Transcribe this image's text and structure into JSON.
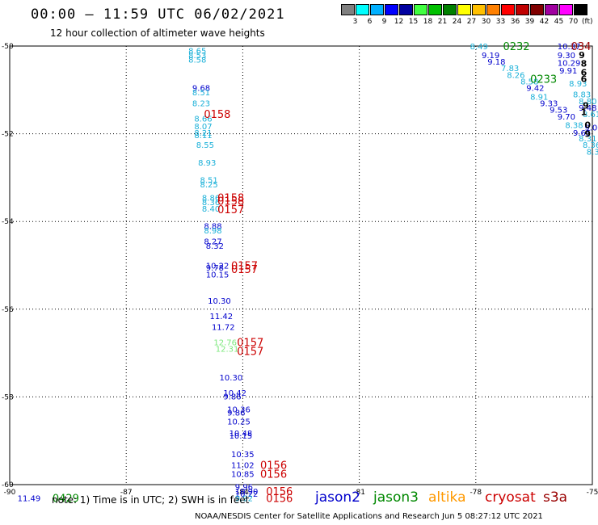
{
  "header": {
    "title": "00:00 – 11:59 UTC 06/02/2021",
    "subtitle": "12 hour collection of altimeter wave heights"
  },
  "legend": {
    "unit": "(ft)",
    "items": [
      {
        "label": "",
        "color": "#808080"
      },
      {
        "label": "3",
        "color": "#00ffff"
      },
      {
        "label": "6",
        "color": "#00b0ff"
      },
      {
        "label": "9",
        "color": "#0000ff"
      },
      {
        "label": "12",
        "color": "#0000a0"
      },
      {
        "label": "15",
        "color": "#40ff40"
      },
      {
        "label": "18",
        "color": "#00c000"
      },
      {
        "label": "21",
        "color": "#008000"
      },
      {
        "label": "24",
        "color": "#ffff00"
      },
      {
        "label": "27",
        "color": "#ffc000"
      },
      {
        "label": "30",
        "color": "#ff8000"
      },
      {
        "label": "33",
        "color": "#ff0000"
      },
      {
        "label": "36",
        "color": "#c00000"
      },
      {
        "label": "39",
        "color": "#800000"
      },
      {
        "label": "42",
        "color": "#a000a0"
      },
      {
        "label": "45",
        "color": "#ff00ff"
      },
      {
        "label": "70",
        "color": "#000000"
      }
    ]
  },
  "map": {
    "lon_range": [
      -90,
      -75
    ],
    "lat_range": [
      -60,
      -50
    ],
    "x_ticks": [
      {
        "value": -90,
        "label": "-90"
      },
      {
        "value": -87,
        "label": "-87"
      },
      {
        "value": -84,
        "label": "-84"
      },
      {
        "value": -81,
        "label": "-81"
      },
      {
        "value": -78,
        "label": "-78"
      },
      {
        "value": -75,
        "label": "-75"
      }
    ],
    "y_ticks": [
      {
        "value": -50,
        "label": "-50"
      },
      {
        "value": -52,
        "label": "-52"
      },
      {
        "value": -54,
        "label": "-54"
      },
      {
        "value": -56,
        "label": "-56"
      },
      {
        "value": -58,
        "label": "-58"
      },
      {
        "value": -60,
        "label": "-60"
      }
    ],
    "grid": "dotted",
    "colors": {
      "jason2": "#0000cc",
      "jason3": "#008800",
      "altika": "#ff9900",
      "cryosat": "#cc0000",
      "s3a": "#990000",
      "light_blue": "#1ab0d8",
      "light_green": "#7de87d",
      "black": "#000000"
    },
    "readings": [
      {
        "lon": -85.4,
        "lat": -50.1,
        "text": "8.65",
        "color": "light_blue"
      },
      {
        "lon": -85.4,
        "lat": -50.2,
        "text": "8.53",
        "color": "light_blue"
      },
      {
        "lon": -85.4,
        "lat": -50.3,
        "text": "8.58",
        "color": "light_blue"
      },
      {
        "lon": -85.3,
        "lat": -50.95,
        "text": "9.68",
        "color": "jason2"
      },
      {
        "lon": -85.3,
        "lat": -51.05,
        "text": "8.51",
        "color": "light_blue"
      },
      {
        "lon": -85.3,
        "lat": -51.3,
        "text": "8.23",
        "color": "light_blue"
      },
      {
        "lon": -85.25,
        "lat": -51.65,
        "text": "8.66",
        "color": "light_blue"
      },
      {
        "lon": -85.25,
        "lat": -51.82,
        "text": "8.07",
        "color": "light_blue"
      },
      {
        "lon": -85.25,
        "lat": -51.97,
        "text": "8.21",
        "color": "light_blue"
      },
      {
        "lon": -85.25,
        "lat": -52.03,
        "text": "8.11",
        "color": "light_blue"
      },
      {
        "lon": -85.2,
        "lat": -52.25,
        "text": "8.55",
        "color": "light_blue"
      },
      {
        "lon": -85.15,
        "lat": -52.65,
        "text": "8.93",
        "color": "light_blue"
      },
      {
        "lon": -85.1,
        "lat": -53.05,
        "text": "8.51",
        "color": "light_blue"
      },
      {
        "lon": -85.1,
        "lat": -53.15,
        "text": "8.25",
        "color": "light_blue"
      },
      {
        "lon": -85.05,
        "lat": -53.45,
        "text": "8.86",
        "color": "light_blue"
      },
      {
        "lon": -85.05,
        "lat": -53.55,
        "text": "8.36",
        "color": "light_blue"
      },
      {
        "lon": -85.05,
        "lat": -53.7,
        "text": "8.40",
        "color": "light_blue"
      },
      {
        "lon": -85.0,
        "lat": -54.1,
        "text": "8.88",
        "color": "jason2"
      },
      {
        "lon": -85.0,
        "lat": -54.2,
        "text": "8.98",
        "color": "light_blue"
      },
      {
        "lon": -85.0,
        "lat": -54.45,
        "text": "8.27",
        "color": "jason2"
      },
      {
        "lon": -84.95,
        "lat": -54.55,
        "text": "8.32",
        "color": "jason2"
      },
      {
        "lon": -84.95,
        "lat": -55.0,
        "text": "10.22",
        "color": "jason2"
      },
      {
        "lon": -84.95,
        "lat": -55.05,
        "text": "9.78",
        "color": "jason2"
      },
      {
        "lon": -84.95,
        "lat": -55.2,
        "text": "10.15",
        "color": "jason2"
      },
      {
        "lon": -84.9,
        "lat": -55.8,
        "text": "10.30",
        "color": "jason2"
      },
      {
        "lon": -84.85,
        "lat": -56.15,
        "text": "11.42",
        "color": "jason2"
      },
      {
        "lon": -84.8,
        "lat": -56.4,
        "text": "11.72",
        "color": "jason2"
      },
      {
        "lon": -84.75,
        "lat": -56.75,
        "text": "12.76",
        "color": "light_green"
      },
      {
        "lon": -84.7,
        "lat": -56.9,
        "text": "12.31",
        "color": "light_green"
      },
      {
        "lon": -84.6,
        "lat": -57.55,
        "text": "10.30",
        "color": "jason2"
      },
      {
        "lon": -84.5,
        "lat": -57.9,
        "text": "10.42",
        "color": "jason2"
      },
      {
        "lon": -84.5,
        "lat": -57.98,
        "text": "9.86",
        "color": "jason2"
      },
      {
        "lon": -84.4,
        "lat": -58.28,
        "text": "10.36",
        "color": "jason2"
      },
      {
        "lon": -84.4,
        "lat": -58.35,
        "text": "9.86",
        "color": "jason2"
      },
      {
        "lon": -84.4,
        "lat": -58.55,
        "text": "10.25",
        "color": "jason2"
      },
      {
        "lon": -84.35,
        "lat": -58.82,
        "text": "10.48",
        "color": "jason2"
      },
      {
        "lon": -84.35,
        "lat": -58.88,
        "text": "10.15",
        "color": "jason2"
      },
      {
        "lon": -84.3,
        "lat": -59.3,
        "text": "10.35",
        "color": "jason2"
      },
      {
        "lon": -84.3,
        "lat": -59.55,
        "text": "11.02",
        "color": "jason2"
      },
      {
        "lon": -84.3,
        "lat": -59.75,
        "text": "10.85",
        "color": "jason2"
      },
      {
        "lon": -84.2,
        "lat": -60.05,
        "text": "9.96",
        "color": "jason2"
      },
      {
        "lon": -84.2,
        "lat": -60.15,
        "text": "10.90",
        "color": "jason2"
      },
      {
        "lon": -84.2,
        "lat": -60.2,
        "text": "10.22",
        "color": "jason2"
      },
      {
        "lon": -84.2,
        "lat": -60.3,
        "text": "9.92",
        "color": "light_blue"
      },
      {
        "lon": -89.8,
        "lat": -60.3,
        "text": "11.49",
        "color": "jason2"
      },
      {
        "lon": -78.15,
        "lat": -50.0,
        "text": "8.49",
        "color": "light_blue"
      },
      {
        "lon": -77.85,
        "lat": -50.2,
        "text": "9.19",
        "color": "jason2"
      },
      {
        "lon": -77.7,
        "lat": -50.35,
        "text": "9.18",
        "color": "jason2"
      },
      {
        "lon": -77.35,
        "lat": -50.5,
        "text": "7.83",
        "color": "light_blue"
      },
      {
        "lon": -77.2,
        "lat": -50.65,
        "text": "8.26",
        "color": "light_blue"
      },
      {
        "lon": -76.85,
        "lat": -50.8,
        "text": "8.58",
        "color": "light_blue"
      },
      {
        "lon": -76.7,
        "lat": -50.95,
        "text": "9.42",
        "color": "jason2"
      },
      {
        "lon": -76.6,
        "lat": -51.15,
        "text": "8.91",
        "color": "light_blue"
      },
      {
        "lon": -76.35,
        "lat": -51.3,
        "text": "9.33",
        "color": "jason2"
      },
      {
        "lon": -76.1,
        "lat": -51.45,
        "text": "9.53",
        "color": "jason2"
      },
      {
        "lon": -75.9,
        "lat": -51.6,
        "text": "9.70",
        "color": "jason2"
      },
      {
        "lon": -75.7,
        "lat": -51.8,
        "text": "8.38",
        "color": "light_blue"
      },
      {
        "lon": -75.5,
        "lat": -51.97,
        "text": "9.65",
        "color": "jason2"
      },
      {
        "lon": -75.35,
        "lat": -52.1,
        "text": "8.31",
        "color": "light_blue"
      },
      {
        "lon": -75.25,
        "lat": -52.25,
        "text": "8.36",
        "color": "light_blue"
      },
      {
        "lon": -75.15,
        "lat": -52.4,
        "text": "8.38",
        "color": "light_blue"
      },
      {
        "lon": -75.9,
        "lat": -50.0,
        "text": "10.37",
        "color": "jason2"
      },
      {
        "lon": -75.9,
        "lat": -50.2,
        "text": "9.30",
        "color": "jason2"
      },
      {
        "lon": -75.9,
        "lat": -50.38,
        "text": "10.29",
        "color": "jason2"
      },
      {
        "lon": -75.85,
        "lat": -50.55,
        "text": "9.91",
        "color": "jason2"
      },
      {
        "lon": -75.6,
        "lat": -50.85,
        "text": "8.93",
        "color": "light_blue"
      },
      {
        "lon": -75.5,
        "lat": -51.1,
        "text": "8.83",
        "color": "light_blue"
      },
      {
        "lon": -75.35,
        "lat": -51.25,
        "text": "8.80",
        "color": "light_blue"
      },
      {
        "lon": -75.35,
        "lat": -51.4,
        "text": "9.48",
        "color": "jason2"
      },
      {
        "lon": -75.25,
        "lat": -51.55,
        "text": "8.61",
        "color": "light_blue"
      },
      {
        "lon": -75.2,
        "lat": -51.85,
        "text": "9.00",
        "color": "jason2"
      }
    ],
    "pass_labels": [
      {
        "lon": -85.0,
        "lat": -51.55,
        "text": "0158",
        "color": "cryosat"
      },
      {
        "lon": -84.65,
        "lat": -53.45,
        "text": "0158",
        "color": "cryosat"
      },
      {
        "lon": -84.65,
        "lat": -53.53,
        "text": "0158",
        "color": "cryosat"
      },
      {
        "lon": -84.65,
        "lat": -53.72,
        "text": "0157",
        "color": "cryosat"
      },
      {
        "lon": -84.3,
        "lat": -55.0,
        "text": "0157",
        "color": "cryosat"
      },
      {
        "lon": -84.3,
        "lat": -55.08,
        "text": "0157",
        "color": "cryosat"
      },
      {
        "lon": -84.15,
        "lat": -56.75,
        "text": "0157",
        "color": "cryosat"
      },
      {
        "lon": -84.15,
        "lat": -56.95,
        "text": "0157",
        "color": "cryosat"
      },
      {
        "lon": -83.55,
        "lat": -59.55,
        "text": "0156",
        "color": "cryosat"
      },
      {
        "lon": -83.55,
        "lat": -59.75,
        "text": "0156",
        "color": "cryosat"
      },
      {
        "lon": -83.4,
        "lat": -60.15,
        "text": "0156",
        "color": "cryosat"
      },
      {
        "lon": -83.4,
        "lat": -60.3,
        "text": "0156",
        "color": "cryosat"
      },
      {
        "lon": -88.9,
        "lat": -60.3,
        "text": "0429",
        "color": "jason3"
      },
      {
        "lon": -77.3,
        "lat": -50.0,
        "text": "0232",
        "color": "jason3"
      },
      {
        "lon": -76.6,
        "lat": -50.75,
        "text": "0233",
        "color": "jason3"
      },
      {
        "lon": -75.55,
        "lat": -50.0,
        "text": "034",
        "color": "s3a"
      }
    ],
    "black_markers": [
      {
        "lon": -75.35,
        "lat": -50.2,
        "text": "9"
      },
      {
        "lon": -75.3,
        "lat": -50.4,
        "text": "8"
      },
      {
        "lon": -75.3,
        "lat": -50.6,
        "text": "6"
      },
      {
        "lon": -75.3,
        "lat": -50.75,
        "text": "6"
      },
      {
        "lon": -75.25,
        "lat": -51.35,
        "text": "9"
      },
      {
        "lon": -75.3,
        "lat": -51.5,
        "text": "1"
      },
      {
        "lon": -75.2,
        "lat": -51.8,
        "text": "0"
      },
      {
        "lon": -75.2,
        "lat": -52.0,
        "text": "9"
      }
    ]
  },
  "footer": {
    "note": "note:  1) Time is in UTC;  2) SWH is in feet",
    "satellites": [
      {
        "label": "jason2",
        "color": "#0000cc"
      },
      {
        "label": "jason3",
        "color": "#008800"
      },
      {
        "label": "altika",
        "color": "#ff9900"
      },
      {
        "label": "cryosat",
        "color": "#cc0000"
      },
      {
        "label": "s3a",
        "color": "#990000"
      }
    ],
    "credit": "NOAA/NESDIS Center for Satellite Applications and Research    Jun  5 08:27:12 UTC 2021"
  }
}
